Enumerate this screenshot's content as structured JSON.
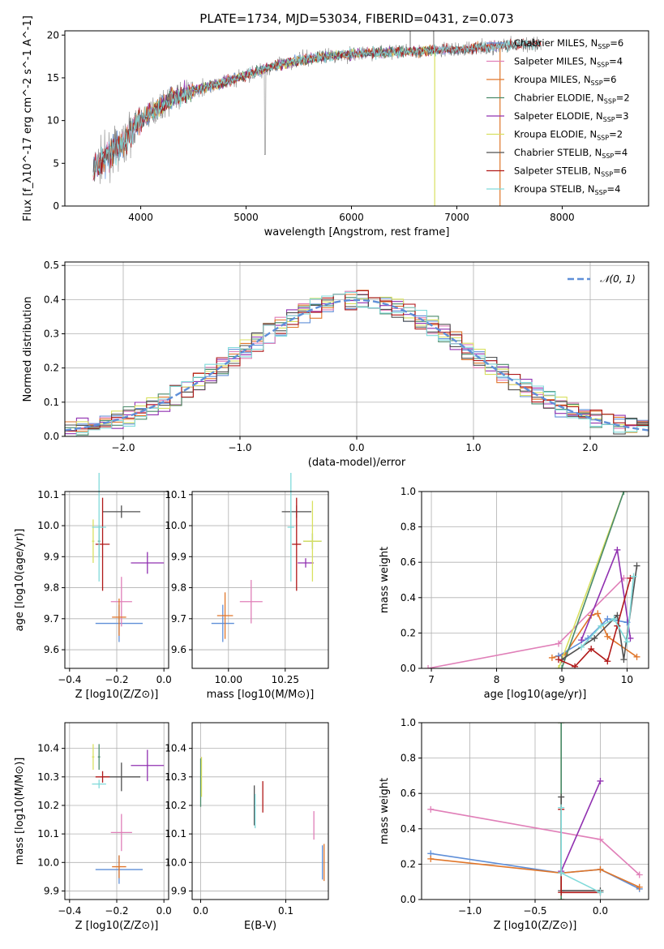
{
  "title": "PLATE=1734, MJD=53034, FIBERID=0431, z=0.073",
  "colors": {
    "Chabrier MILES": "#5f8fd8",
    "Salpeter MILES": "#e07fb8",
    "Kroupa MILES": "#e0762a",
    "Chabrier ELODIE": "#4a8a6a",
    "Salpeter ELODIE": "#9030b0",
    "Kroupa ELODIE": "#d8e060",
    "Chabrier STELIB": "#505050",
    "Salpeter STELIB": "#b01818",
    "Kroupa STELIB": "#80dada",
    "data": "#808080",
    "normal": "#5f8fd8"
  },
  "chart_data": [
    {
      "type": "line",
      "xlabel": "wavelength [Angstrom, rest frame]",
      "ylabel": "Flux [f_λ10^-17 erg cm^-2 s^-1 A^-1]",
      "xlim": [
        3280,
        8820
      ],
      "ylim": [
        0,
        20.5
      ],
      "xticks": [
        4000,
        5000,
        6000,
        7000,
        8000
      ],
      "yticks": [
        0,
        5,
        10,
        15,
        20
      ],
      "grid": false,
      "legend_position": "top-right",
      "legend": [
        {
          "label": "Chabrier MILES, N",
          "n": "6"
        },
        {
          "label": "Salpeter MILES, N",
          "n": "4"
        },
        {
          "label": "Kroupa MILES, N",
          "n": "6"
        },
        {
          "label": "Chabrier ELODIE, N",
          "n": "2"
        },
        {
          "label": "Salpeter ELODIE, N",
          "n": "3"
        },
        {
          "label": "Kroupa ELODIE, N",
          "n": "2"
        },
        {
          "label": "Chabrier STELIB, N",
          "n": "4"
        },
        {
          "label": "Salpeter STELIB, N",
          "n": "6"
        },
        {
          "label": "Kroupa STELIB, N",
          "n": "4"
        }
      ],
      "legend_sub": "SSP",
      "continuum": [
        [
          3550,
          4.5
        ],
        [
          3700,
          6
        ],
        [
          3850,
          7.5
        ],
        [
          3950,
          9.5
        ],
        [
          4100,
          11
        ],
        [
          4300,
          12.5
        ],
        [
          4500,
          13.5
        ],
        [
          4800,
          14.5
        ],
        [
          5000,
          15.3
        ],
        [
          5300,
          16.5
        ],
        [
          5600,
          17.3
        ],
        [
          6000,
          17.8
        ],
        [
          6300,
          18
        ],
        [
          6600,
          18.1
        ],
        [
          7000,
          18.3
        ],
        [
          7300,
          18.6
        ],
        [
          7600,
          18.9
        ],
        [
          7800,
          19
        ]
      ]
    },
    {
      "type": "histogram",
      "xlabel": "(data-model)/error",
      "ylabel": "Normed distribution",
      "xlim": [
        -2.5,
        2.5
      ],
      "ylim": [
        0,
        0.51
      ],
      "xticks": [
        -2,
        -1,
        0,
        1,
        2
      ],
      "yticks": [
        0.0,
        0.1,
        0.2,
        0.3,
        0.4,
        0.5
      ],
      "grid": true,
      "legend_position": "top-right",
      "legend": [
        "𝒩(0, 1)"
      ],
      "bin_width": 0.1
    },
    {
      "type": "scatter",
      "xlabel": "Z [log10(Z/Z⊙)]",
      "ylabel": "age [log10(age/yr)]",
      "xlim": [
        -0.42,
        0.02
      ],
      "ylim": [
        9.54,
        10.11
      ],
      "xticks": [
        -0.4,
        -0.2,
        0.0
      ],
      "yticks": [
        9.6,
        9.7,
        9.8,
        9.9,
        10.0,
        10.1
      ],
      "grid": true,
      "points": [
        {
          "s": "Chabrier MILES",
          "x": -0.19,
          "xe": 0.2,
          "y": 9.685,
          "ye": 0.12
        },
        {
          "s": "Salpeter MILES",
          "x": -0.18,
          "xe": 0.09,
          "y": 9.755,
          "ye": 0.16
        },
        {
          "s": "Kroupa MILES",
          "x": -0.19,
          "xe": 0.06,
          "y": 9.705,
          "ye": 0.12
        },
        {
          "s": "Chabrier ELODIE",
          "x": -0.275,
          "xe": 0.01,
          "y": 9.95,
          "ye": 0.1
        },
        {
          "s": "Salpeter ELODIE",
          "x": -0.07,
          "xe": 0.14,
          "y": 9.88,
          "ye": 0.07
        },
        {
          "s": "Kroupa ELODIE",
          "x": -0.3,
          "xe": 0.01,
          "y": 9.95,
          "ye": 0.14
        },
        {
          "s": "Chabrier STELIB",
          "x": -0.18,
          "xe": 0.16,
          "y": 10.045,
          "ye": 0.04
        },
        {
          "s": "Salpeter STELIB",
          "x": -0.26,
          "xe": 0.06,
          "y": 9.94,
          "ye": 0.3
        },
        {
          "s": "Kroupa STELIB",
          "x": -0.275,
          "xe": 0.06,
          "y": 9.995,
          "ye": 0.35
        }
      ]
    },
    {
      "type": "scatter",
      "xlabel": "mass [log10(M/M⊙)]",
      "ylabel": "",
      "xlim": [
        9.84,
        10.44
      ],
      "ylim": [
        9.54,
        10.11
      ],
      "xticks": [
        10.0,
        10.25
      ],
      "yticks": [
        9.6,
        9.7,
        9.8,
        9.9,
        10.0,
        10.1
      ],
      "grid": true,
      "points": [
        {
          "s": "Chabrier MILES",
          "x": 9.975,
          "xe": 0.1,
          "y": 9.685,
          "ye": 0.12
        },
        {
          "s": "Salpeter MILES",
          "x": 10.1,
          "xe": 0.1,
          "y": 9.755,
          "ye": 0.14
        },
        {
          "s": "Kroupa MILES",
          "x": 9.985,
          "xe": 0.07,
          "y": 9.71,
          "ye": 0.15
        },
        {
          "s": "Chabrier ELODIE",
          "x": 10.37,
          "xe": 0.08,
          "y": 9.95,
          "ye": 0.05
        },
        {
          "s": "Salpeter ELODIE",
          "x": 10.34,
          "xe": 0.07,
          "y": 9.88,
          "ye": 0.03
        },
        {
          "s": "Kroupa ELODIE",
          "x": 10.37,
          "xe": 0.08,
          "y": 9.95,
          "ye": 0.26
        },
        {
          "s": "Chabrier STELIB",
          "x": 10.3,
          "xe": 0.13,
          "y": 10.045,
          "ye": 0.04
        },
        {
          "s": "Salpeter STELIB",
          "x": 10.3,
          "xe": 0.04,
          "y": 9.94,
          "ye": 0.3
        },
        {
          "s": "Kroupa STELIB",
          "x": 10.275,
          "xe": 0.03,
          "y": 9.995,
          "ye": 0.35
        }
      ]
    },
    {
      "type": "line",
      "xlabel": "age [log10(age/yr)]",
      "ylabel": "mass weight",
      "xlim": [
        6.85,
        10.33
      ],
      "ylim": [
        0,
        1.0
      ],
      "xticks": [
        7,
        8,
        9,
        10
      ],
      "yticks": [
        0.0,
        0.2,
        0.4,
        0.6,
        0.8,
        1.0
      ],
      "grid": true,
      "series": [
        {
          "s": "Salpeter MILES",
          "x": [
            6.95,
            8.95,
            9.95
          ],
          "y": [
            0.0,
            0.14,
            0.51
          ]
        },
        {
          "s": "Kroupa MILES",
          "x": [
            8.85,
            8.95,
            9.05,
            9.45,
            9.55,
            9.7,
            10.15
          ],
          "y": [
            0.06,
            0.07,
            0.08,
            0.3,
            0.31,
            0.18,
            0.065
          ]
        },
        {
          "s": "Chabrier MILES",
          "x": [
            8.95,
            9.4,
            9.7,
            10.0
          ],
          "y": [
            0.07,
            0.17,
            0.28,
            0.26
          ]
        },
        {
          "s": "Kroupa ELODIE",
          "x": [
            8.95,
            9.95
          ],
          "y": [
            0.0,
            1.0
          ]
        },
        {
          "s": "Chabrier ELODIE",
          "x": [
            9.0,
            9.95
          ],
          "y": [
            0.0,
            1.0
          ]
        },
        {
          "s": "Salpeter ELODIE",
          "x": [
            9.3,
            9.85,
            10.05
          ],
          "y": [
            0.16,
            0.67,
            0.17
          ]
        },
        {
          "s": "Chabrier STELIB",
          "x": [
            9.0,
            9.5,
            9.85,
            9.95,
            10.15
          ],
          "y": [
            0.05,
            0.17,
            0.3,
            0.05,
            0.58
          ]
        },
        {
          "s": "Salpeter STELIB",
          "x": [
            8.95,
            9.2,
            9.45,
            9.7,
            9.85,
            10.05
          ],
          "y": [
            0.05,
            0.01,
            0.11,
            0.04,
            0.24,
            0.51
          ]
        },
        {
          "s": "Kroupa STELIB",
          "x": [
            9.3,
            9.6,
            9.8,
            10.0,
            10.1
          ],
          "y": [
            0.12,
            0.24,
            0.28,
            0.15,
            0.52
          ]
        }
      ]
    },
    {
      "type": "scatter",
      "xlabel": "Z [log10(Z/Z⊙)]",
      "ylabel": "mass [log10(M/M⊙)]",
      "xlim": [
        -0.42,
        0.02
      ],
      "ylim": [
        9.87,
        10.49
      ],
      "xticks": [
        -0.4,
        -0.2,
        0.0
      ],
      "yticks": [
        9.9,
        10.0,
        10.1,
        10.2,
        10.3,
        10.4
      ],
      "grid": true,
      "points": [
        {
          "s": "Chabrier MILES",
          "x": -0.19,
          "xe": 0.2,
          "y": 9.975,
          "ye": 0.1
        },
        {
          "s": "Salpeter MILES",
          "x": -0.18,
          "xe": 0.09,
          "y": 10.105,
          "ye": 0.13
        },
        {
          "s": "Kroupa MILES",
          "x": -0.19,
          "xe": 0.06,
          "y": 9.985,
          "ye": 0.08
        },
        {
          "s": "Chabrier ELODIE",
          "x": -0.275,
          "xe": 0.01,
          "y": 10.37,
          "ye": 0.09
        },
        {
          "s": "Salpeter ELODIE",
          "x": -0.07,
          "xe": 0.14,
          "y": 10.34,
          "ye": 0.11
        },
        {
          "s": "Kroupa ELODIE",
          "x": -0.3,
          "xe": 0.01,
          "y": 10.37,
          "ye": 0.09
        },
        {
          "s": "Chabrier STELIB",
          "x": -0.18,
          "xe": 0.16,
          "y": 10.3,
          "ye": 0.1
        },
        {
          "s": "Salpeter STELIB",
          "x": -0.26,
          "xe": 0.06,
          "y": 10.3,
          "ye": 0.04
        },
        {
          "s": "Kroupa STELIB",
          "x": -0.275,
          "xe": 0.06,
          "y": 10.275,
          "ye": 0.03
        }
      ]
    },
    {
      "type": "scatter",
      "xlabel": "E(B-V)",
      "ylabel": "",
      "xlim": [
        -0.01,
        0.15
      ],
      "ylim": [
        9.87,
        10.49
      ],
      "xticks": [
        0.0,
        0.1
      ],
      "yticks": [
        9.9,
        10.0,
        10.1,
        10.2,
        10.3,
        10.4
      ],
      "grid": true,
      "points": [
        {
          "s": "Chabrier MILES",
          "x": 0.143,
          "y": 10.0,
          "ye": 0.12
        },
        {
          "s": "Kroupa MILES",
          "x": 0.145,
          "y": 10.0,
          "ye": 0.13
        },
        {
          "s": "Salpeter MILES",
          "x": 0.133,
          "y": 10.13,
          "ye": 0.1
        },
        {
          "s": "Chabrier ELODIE",
          "x": 0.0,
          "y": 10.28,
          "ye": 0.17
        },
        {
          "s": "Kroupa ELODIE",
          "x": 0.001,
          "y": 10.3,
          "ye": 0.14
        },
        {
          "s": "Salpeter STELIB",
          "x": 0.073,
          "y": 10.23,
          "ye": 0.11
        },
        {
          "s": "Chabrier STELIB",
          "x": 0.063,
          "y": 10.2,
          "ye": 0.14
        },
        {
          "s": "Kroupa STELIB",
          "x": 0.064,
          "y": 10.18,
          "ye": 0.12
        }
      ]
    },
    {
      "type": "line",
      "xlabel": "Z [log10(Z/Z⊙)]",
      "ylabel": "mass weight",
      "xlim": [
        -1.37,
        0.37
      ],
      "ylim": [
        0,
        1.0
      ],
      "xticks": [
        -1.0,
        -0.5,
        0.0
      ],
      "yticks": [
        0.0,
        0.2,
        0.4,
        0.6,
        0.8,
        1.0
      ],
      "grid": true,
      "series": [
        {
          "s": "Salpeter MILES",
          "x": [
            -1.3,
            0.0,
            0.3
          ],
          "y": [
            0.51,
            0.34,
            0.14
          ]
        },
        {
          "s": "Chabrier MILES",
          "x": [
            -1.3,
            -0.3,
            0.0,
            0.3
          ],
          "y": [
            0.26,
            0.15,
            0.17,
            0.06
          ]
        },
        {
          "s": "Kroupa MILES",
          "x": [
            -1.3,
            -0.3,
            0.0,
            0.3
          ],
          "y": [
            0.23,
            0.15,
            0.17,
            0.07
          ]
        },
        {
          "s": "Kroupa ELODIE",
          "x": [
            -0.3,
            -0.3
          ],
          "y": [
            0.0,
            1.0
          ]
        },
        {
          "s": "Chabrier ELODIE",
          "x": [
            -0.3,
            -0.3
          ],
          "y": [
            0.0,
            1.0
          ]
        },
        {
          "s": "Salpeter ELODIE",
          "x": [
            -0.3,
            0.0
          ],
          "y": [
            0.16,
            0.67
          ]
        },
        {
          "s": "Chabrier STELIB",
          "x": [
            -0.3,
            -0.3,
            0.0
          ],
          "y": [
            0.58,
            0.05,
            0.05
          ]
        },
        {
          "s": "Salpeter STELIB",
          "x": [
            -0.3,
            -0.3,
            0.0
          ],
          "y": [
            0.51,
            0.04,
            0.04
          ]
        },
        {
          "s": "Kroupa STELIB",
          "x": [
            -0.3,
            -0.3,
            0.0
          ],
          "y": [
            0.52,
            0.15,
            0.04
          ]
        }
      ]
    }
  ]
}
